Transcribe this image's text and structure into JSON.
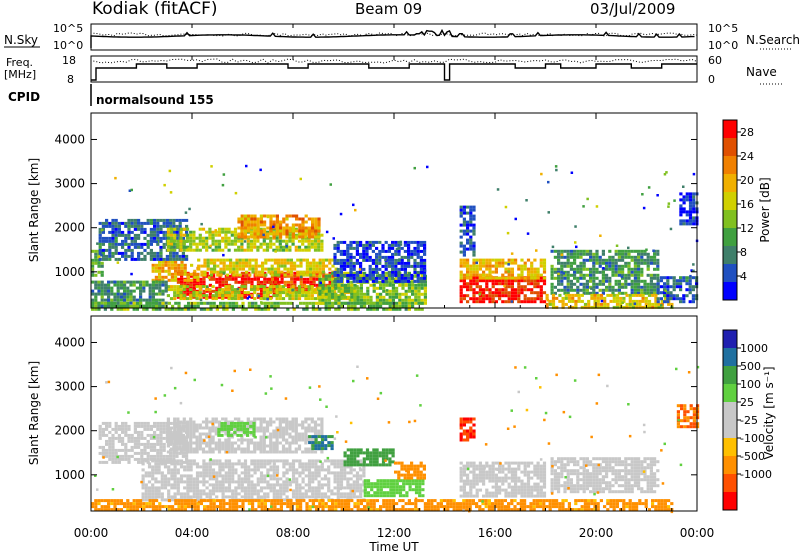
{
  "header": {
    "station": "Kodiak (fitACF)",
    "beam": "Beam 09",
    "date": "03/Jul/2009"
  },
  "panels": {
    "nsky_label": "N.Sky",
    "nsky_top": "10^5",
    "nsky_bottom": "10^0",
    "nsearch_label": "N.Search",
    "nsearch_top": "10^5",
    "nsearch_bottom": "10^0",
    "freq_label_1": "Freq.",
    "freq_label_2": "[MHz]",
    "freq_top": "18",
    "freq_bottom": "8",
    "nave_label": "Nave",
    "nave_top": "60",
    "nave_bottom": "0",
    "cpid_label": "CPID",
    "cpid_value": "normalsound 155"
  },
  "colors": {
    "power": [
      "#0000ff",
      "#2050c0",
      "#3f7f6a",
      "#40a040",
      "#80c020",
      "#d0d000",
      "#f0b000",
      "#f08000",
      "#e05000",
      "#ff0000"
    ],
    "velocity": [
      "#ff0000",
      "#ff5000",
      "#ff9000",
      "#ffc000",
      "#c8c8c8",
      "#c8c8c8",
      "#60d040",
      "#40a040",
      "#2070a0",
      "#2020b0"
    ],
    "missing": "#ffffff"
  },
  "chart_data": [
    {
      "type": "heatmap",
      "name": "power",
      "ylabel": "Slant Range [km]",
      "xlabel": "",
      "x_ticks": [
        "00:00",
        "04:00",
        "08:00",
        "12:00",
        "16:00",
        "20:00",
        "00:00"
      ],
      "x_range_hours": [
        0,
        24
      ],
      "y_ticks": [
        1000,
        2000,
        3000,
        4000
      ],
      "ylim": [
        180,
        4600
      ],
      "colorbar_label": "Power [dB]",
      "colorbar_ticks": [
        "4",
        "8",
        "12",
        "16",
        "20",
        "24",
        "28"
      ],
      "colorbar_range": [
        0,
        30
      ],
      "regions": [
        {
          "t": [
            3.4,
            7.4
          ],
          "r": [
            450,
            1000
          ],
          "v": 29
        },
        {
          "t": [
            7.0,
            9.6
          ],
          "r": [
            550,
            1000
          ],
          "v": 26
        },
        {
          "t": [
            2.4,
            4.2
          ],
          "r": [
            800,
            1250
          ],
          "v": 20
        },
        {
          "t": [
            4.2,
            9.7
          ],
          "r": [
            900,
            1300
          ],
          "v": 17
        },
        {
          "t": [
            3.0,
            10.6
          ],
          "r": [
            400,
            700
          ],
          "v": 16
        },
        {
          "t": [
            0.0,
            3.0
          ],
          "r": [
            250,
            800
          ],
          "v": 9
        },
        {
          "t": [
            0.0,
            0.5
          ],
          "r": [
            900,
            1500
          ],
          "v": 12
        },
        {
          "t": [
            0.3,
            3.8
          ],
          "r": [
            1300,
            2200
          ],
          "v": 6
        },
        {
          "t": [
            3.0,
            9.2
          ],
          "r": [
            1500,
            2000
          ],
          "v": 15
        },
        {
          "t": [
            5.8,
            9.0
          ],
          "r": [
            1800,
            2300
          ],
          "v": 21
        },
        {
          "t": [
            9.0,
            13.2
          ],
          "r": [
            300,
            1000
          ],
          "v": 13
        },
        {
          "t": [
            9.6,
            13.2
          ],
          "r": [
            800,
            1700
          ],
          "v": 4
        },
        {
          "t": [
            14.6,
            18.0
          ],
          "r": [
            350,
            900
          ],
          "v": 28
        },
        {
          "t": [
            14.6,
            18.0
          ],
          "r": [
            850,
            1300
          ],
          "v": 19
        },
        {
          "t": [
            14.6,
            15.2
          ],
          "r": [
            1400,
            2500
          ],
          "v": 5
        },
        {
          "t": [
            18.2,
            22.4
          ],
          "r": [
            500,
            1500
          ],
          "v": 9
        },
        {
          "t": [
            18.0,
            23.0
          ],
          "r": [
            200,
            500
          ],
          "v": 18
        },
        {
          "t": [
            22.4,
            24.0
          ],
          "r": [
            300,
            900
          ],
          "v": 6
        },
        {
          "t": [
            23.3,
            24.0
          ],
          "r": [
            2100,
            2800
          ],
          "v": 3
        },
        {
          "t": [
            0.0,
            13.3
          ],
          "r": [
            180,
            320
          ],
          "v": 12
        }
      ],
      "gaps": [
        {
          "t": [
            13.4,
            14.5
          ]
        },
        {
          "t": [
            18.0,
            18.2
          ]
        }
      ]
    },
    {
      "type": "heatmap",
      "name": "velocity",
      "ylabel": "Slant Range [km]",
      "xlabel": "Time UT",
      "x_ticks": [
        "00:00",
        "04:00",
        "08:00",
        "12:00",
        "16:00",
        "20:00",
        "00:00"
      ],
      "x_range_hours": [
        0,
        24
      ],
      "y_ticks": [
        1000,
        2000,
        3000,
        4000
      ],
      "ylim": [
        180,
        4600
      ],
      "colorbar_label": "Velocity [m s⁻¹]",
      "colorbar_ticks": [
        "1000",
        "500",
        "100",
        "25",
        "-25",
        "-100",
        "-500",
        "-1000"
      ],
      "regions": [
        {
          "t": [
            2.0,
            10.8
          ],
          "r": [
            450,
            1350
          ],
          "v": 0
        },
        {
          "t": [
            0.3,
            3.8
          ],
          "r": [
            1300,
            2200
          ],
          "v": 0
        },
        {
          "t": [
            3.0,
            9.2
          ],
          "r": [
            1500,
            2300
          ],
          "v": 0
        },
        {
          "t": [
            5.0,
            6.4
          ],
          "r": [
            1900,
            2200
          ],
          "v": 120
        },
        {
          "t": [
            8.6,
            9.6
          ],
          "r": [
            1600,
            1900
          ],
          "v": 700
        },
        {
          "t": [
            10.0,
            12.0
          ],
          "r": [
            1200,
            1600
          ],
          "v": 400
        },
        {
          "t": [
            10.8,
            13.2
          ],
          "r": [
            500,
            900
          ],
          "v": 120
        },
        {
          "t": [
            12.0,
            13.2
          ],
          "r": [
            900,
            1300
          ],
          "v": -200
        },
        {
          "t": [
            14.6,
            18.0
          ],
          "r": [
            500,
            1300
          ],
          "v": 0
        },
        {
          "t": [
            14.6,
            15.2
          ],
          "r": [
            1800,
            2300
          ],
          "v": -700
        },
        {
          "t": [
            18.2,
            22.4
          ],
          "r": [
            600,
            1400
          ],
          "v": 0
        },
        {
          "t": [
            23.2,
            24.0
          ],
          "r": [
            2100,
            2600
          ],
          "v": -300
        },
        {
          "t": [
            0.0,
            23.0
          ],
          "r": [
            200,
            450
          ],
          "v": -80
        }
      ],
      "gaps": [
        {
          "t": [
            13.4,
            14.5
          ]
        },
        {
          "t": [
            18.0,
            18.2
          ]
        }
      ]
    }
  ]
}
